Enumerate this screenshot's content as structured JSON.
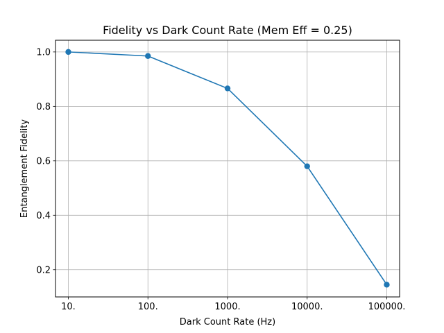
{
  "chart_data": {
    "type": "line",
    "title": "Fidelity vs Dark Count Rate (Mem Eff = 0.25)",
    "xlabel": "Dark Count Rate (Hz)",
    "ylabel": "Entanglement Fidelity",
    "x_scale": "log",
    "x_tick_labels": [
      "10.",
      "100.",
      "1000.",
      "10000.",
      "100000."
    ],
    "x": [
      10,
      100,
      1000,
      10000,
      100000
    ],
    "xlim": [
      6.9,
      145000
    ],
    "y_ticks": [
      0.2,
      0.4,
      0.6,
      0.8,
      1.0
    ],
    "y_tick_labels": [
      "0.2",
      "0.4",
      "0.6",
      "0.8",
      "1.0"
    ],
    "ylim": [
      0.1,
      1.043
    ],
    "grid": true,
    "series": [
      {
        "values": [
          1.0,
          0.985,
          0.866,
          0.58,
          0.145
        ],
        "color": "#1f77b4",
        "marker": "circle"
      }
    ]
  }
}
